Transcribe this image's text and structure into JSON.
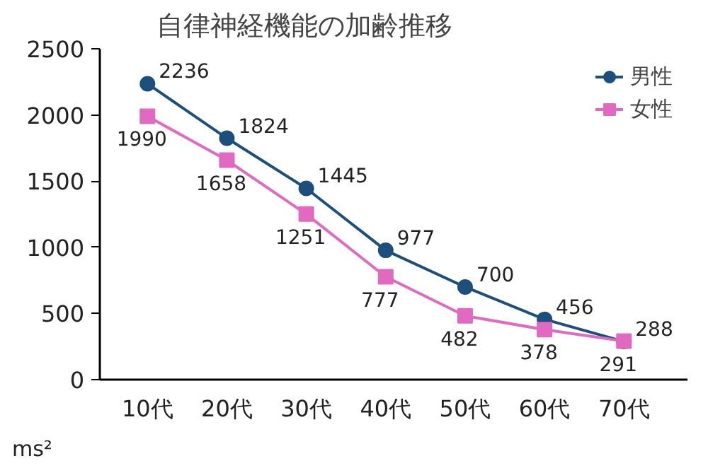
{
  "chart_data": {
    "type": "line",
    "title": "自律神経機能の加齢推移",
    "ylabel": "ms²",
    "categories": [
      "10代",
      "20代",
      "30代",
      "40代",
      "50代",
      "60代",
      "70代"
    ],
    "series": [
      {
        "name": "男性",
        "color": "#1c4f7c",
        "marker": "circle",
        "values": [
          2236,
          1824,
          1445,
          977,
          700,
          456,
          288
        ]
      },
      {
        "name": "女性",
        "color": "#e06ac0",
        "marker": "square",
        "values": [
          1990,
          1658,
          1251,
          777,
          482,
          378,
          291
        ]
      }
    ],
    "ylim": [
      0,
      2500
    ],
    "yticks": [
      0,
      500,
      1000,
      1500,
      2000,
      2500
    ],
    "grid": false,
    "legend": "top right",
    "data_labels": true,
    "line_style": "solid"
  }
}
